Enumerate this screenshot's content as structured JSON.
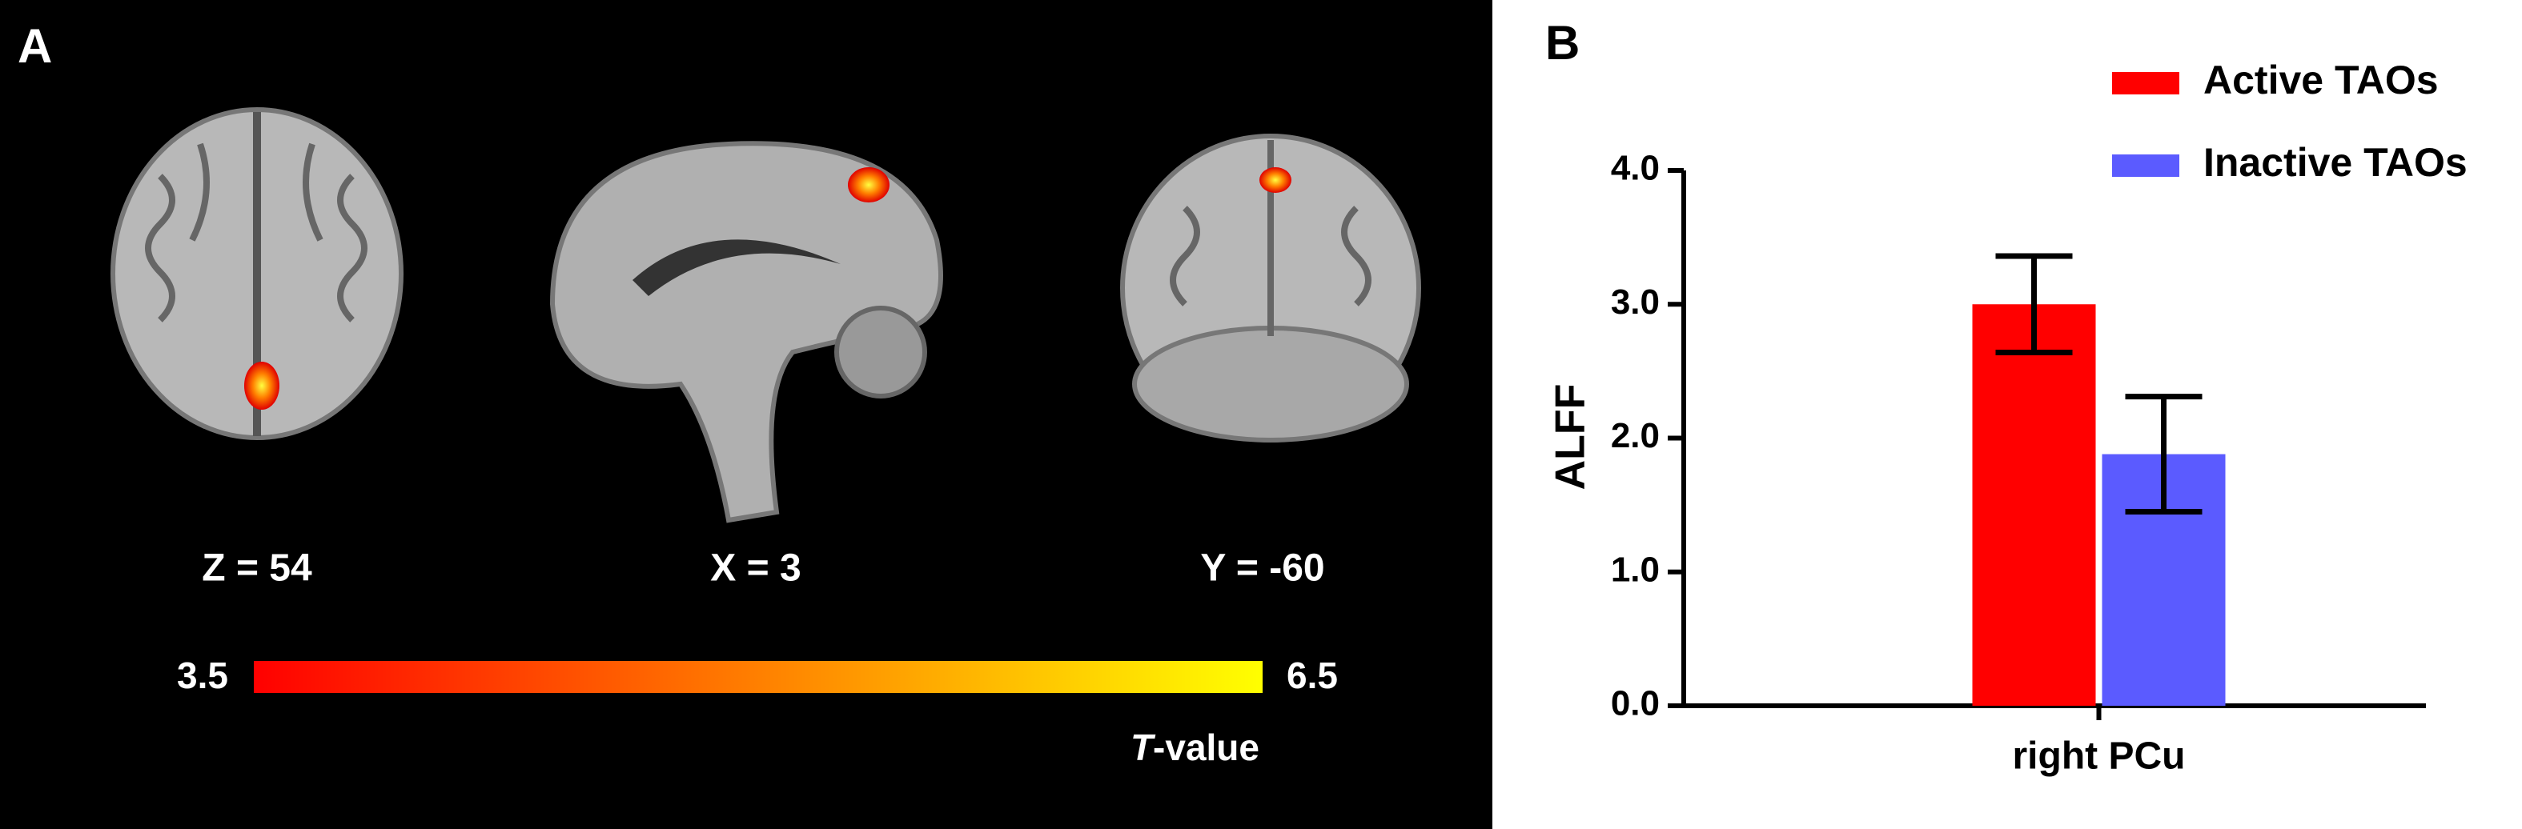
{
  "panel_a": {
    "label": "A",
    "slices": [
      "Z = 54",
      "X = 3",
      "Y = -60"
    ],
    "colorbar": {
      "min": 3.5,
      "max": 6.5,
      "label_italic": "T",
      "label_rest": "-value",
      "colors": [
        "#ff0000",
        "#ffff00"
      ]
    }
  },
  "chart_data": {
    "type": "bar",
    "label": "B",
    "ylabel": "ALFF",
    "categories": [
      "right PCu"
    ],
    "series": [
      {
        "name": "Active TAOs",
        "color": "#ff0000",
        "values": [
          3.0
        ],
        "errors": [
          0.36
        ]
      },
      {
        "name": "Inactive TAOs",
        "color": "#5b5bff",
        "values": [
          1.88
        ],
        "errors": [
          0.43
        ]
      }
    ],
    "ylim": [
      0,
      4
    ],
    "yticks": [
      {
        "value": 0,
        "label": "0.0"
      },
      {
        "value": 1,
        "label": "1.0"
      },
      {
        "value": 2,
        "label": "2.0"
      },
      {
        "value": 3,
        "label": "3.0"
      },
      {
        "value": 4,
        "label": "4.0"
      }
    ],
    "grid": false
  }
}
